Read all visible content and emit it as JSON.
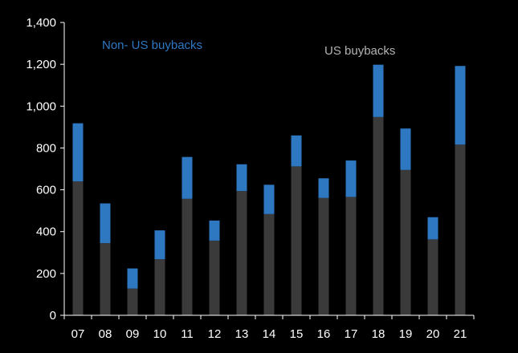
{
  "chart_data": {
    "type": "bar",
    "stacked": true,
    "categories": [
      "07",
      "08",
      "09",
      "10",
      "11",
      "12",
      "13",
      "14",
      "15",
      "16",
      "17",
      "18",
      "19",
      "20",
      "21"
    ],
    "series": [
      {
        "name": "US buybacks",
        "color": "#3a3a3a",
        "label_color": "#b3b3b3",
        "values": [
          640,
          345,
          128,
          268,
          557,
          357,
          594,
          484,
          712,
          561,
          566,
          948,
          695,
          363,
          816
        ]
      },
      {
        "name": "Non- US buybacks",
        "color": "#2e78c2",
        "label_color": "#2e78c2",
        "values": [
          278,
          190,
          96,
          138,
          200,
          96,
          128,
          140,
          148,
          94,
          174,
          250,
          198,
          106,
          376
        ]
      }
    ],
    "ylim": [
      0,
      1400
    ],
    "yticks": [
      "0",
      "200",
      "400",
      "600",
      "800",
      "1,000",
      "1,200",
      "1,400"
    ],
    "ytick_values": [
      0,
      200,
      400,
      600,
      800,
      1000,
      1200,
      1400
    ],
    "title": "",
    "xlabel": "",
    "ylabel": "",
    "grid": false,
    "legend": "inline labels, top",
    "background": "#000000",
    "axis_color": "#ffffff",
    "text_color": "#ffffff"
  }
}
